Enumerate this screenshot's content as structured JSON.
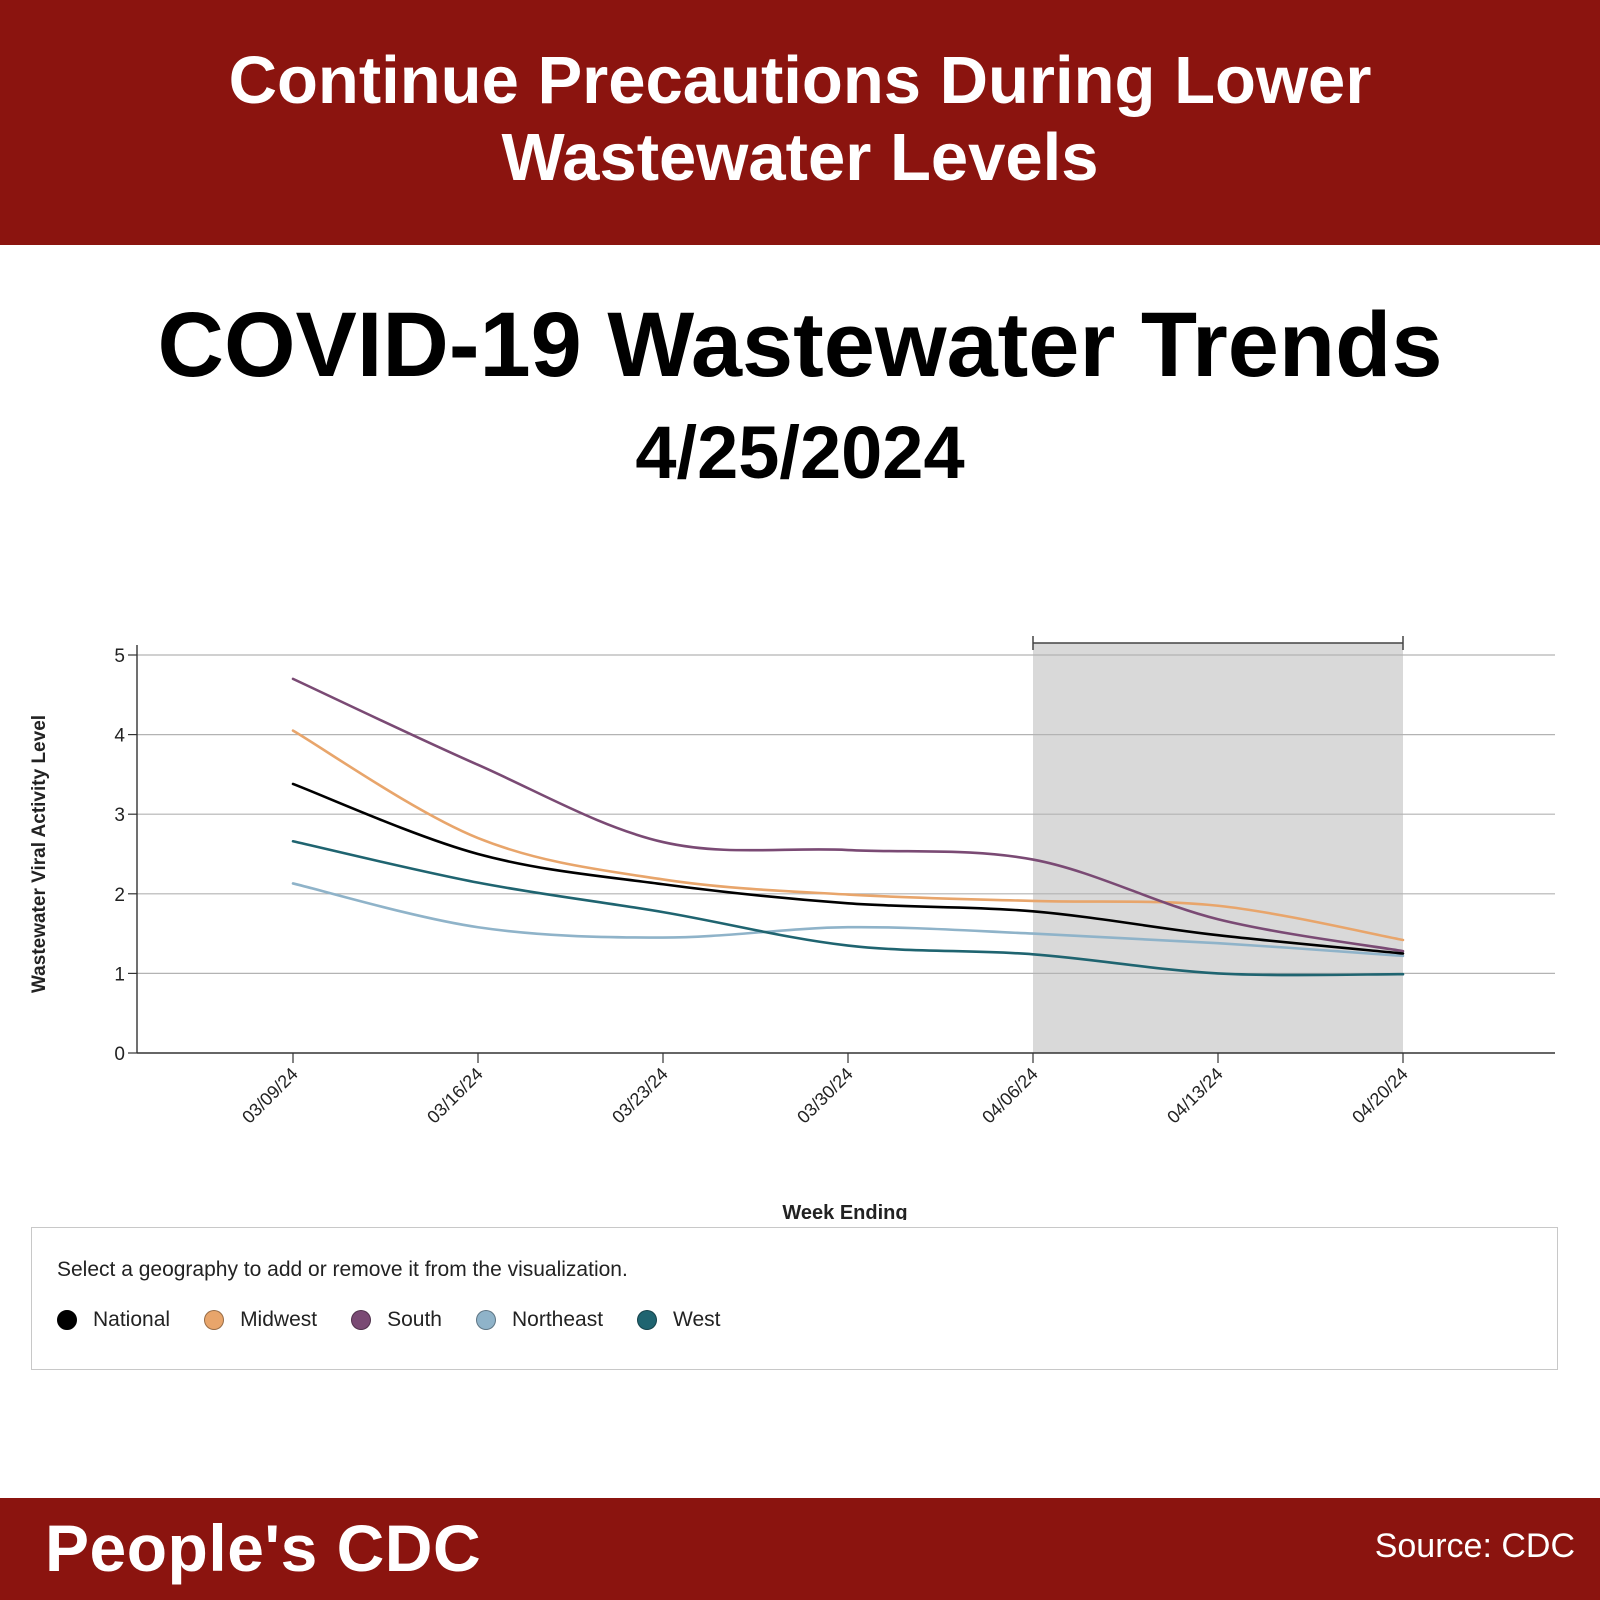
{
  "banner": {
    "title": "Continue Precautions During Lower Wastewater Levels"
  },
  "header": {
    "title": "COVID-19 Wastewater Trends",
    "date": "4/25/2024"
  },
  "legend": {
    "prompt": "Select a geography to add or remove it from the visualization.",
    "items": [
      {
        "label": "National",
        "color": "#000000"
      },
      {
        "label": "Midwest",
        "color": "#e8a56b"
      },
      {
        "label": "South",
        "color": "#7a4a74"
      },
      {
        "label": "Northeast",
        "color": "#8fb3c9"
      },
      {
        "label": "West",
        "color": "#1f6470"
      }
    ]
  },
  "footer": {
    "brand": "People's CDC",
    "source": "Source: CDC"
  },
  "chart_data": {
    "type": "line",
    "xlabel": "Week Ending",
    "ylabel": "Wastewater Viral Activity Level",
    "categories": [
      "03/09/24",
      "03/16/24",
      "03/23/24",
      "03/30/24",
      "04/06/24",
      "04/13/24",
      "04/20/24"
    ],
    "ylim": [
      0,
      5
    ],
    "yticks": [
      0,
      1,
      2,
      3,
      4,
      5
    ],
    "grid": true,
    "shaded_region": {
      "from": "04/06/24",
      "to": "04/20/24",
      "color": "#d9d9d9"
    },
    "series": [
      {
        "name": "National",
        "color": "#000000",
        "values": [
          3.38,
          2.5,
          2.12,
          1.88,
          1.78,
          1.48,
          1.25
        ]
      },
      {
        "name": "Midwest",
        "color": "#e8a56b",
        "values": [
          4.05,
          2.7,
          2.18,
          1.99,
          1.91,
          1.85,
          1.42
        ]
      },
      {
        "name": "South",
        "color": "#7a4a74",
        "values": [
          4.7,
          3.62,
          2.65,
          2.55,
          2.43,
          1.68,
          1.28
        ]
      },
      {
        "name": "Northeast",
        "color": "#8fb3c9",
        "values": [
          2.13,
          1.58,
          1.45,
          1.58,
          1.5,
          1.38,
          1.22
        ]
      },
      {
        "name": "West",
        "color": "#1f6470",
        "values": [
          2.66,
          2.14,
          1.77,
          1.35,
          1.24,
          1.0,
          0.99
        ]
      }
    ]
  }
}
